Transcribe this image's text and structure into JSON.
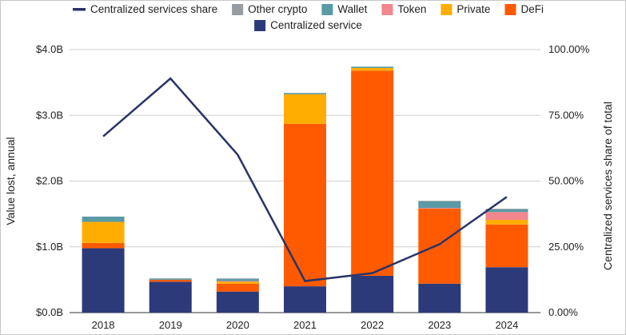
{
  "chart_data": {
    "type": "bar",
    "stacked": true,
    "categories": [
      "2018",
      "2019",
      "2020",
      "2021",
      "2022",
      "2023",
      "2024"
    ],
    "series": [
      {
        "name": "Centralized service",
        "color": "#2d3a7a",
        "values": [
          0.98,
          0.47,
          0.32,
          0.4,
          0.56,
          0.44,
          0.69
        ]
      },
      {
        "name": "DeFi",
        "color": "#ff5a00",
        "values": [
          0.08,
          0.03,
          0.12,
          2.47,
          3.12,
          1.14,
          0.65
        ]
      },
      {
        "name": "Private",
        "color": "#ffad00",
        "values": [
          0.32,
          0.0,
          0.03,
          0.45,
          0.04,
          0.0,
          0.07
        ]
      },
      {
        "name": "Token",
        "color": "#f2868f",
        "values": [
          0.0,
          0.0,
          0.01,
          0.0,
          0.0,
          0.01,
          0.12
        ]
      },
      {
        "name": "Wallet",
        "color": "#5a9aa5",
        "values": [
          0.08,
          0.02,
          0.03,
          0.02,
          0.02,
          0.1,
          0.04
        ]
      },
      {
        "name": "Other crypto",
        "color": "#969ca0",
        "values": [
          0.0,
          0.0,
          0.01,
          0.0,
          0.0,
          0.01,
          0.01
        ]
      }
    ],
    "line": {
      "name": "Centralized services share",
      "color": "#283469",
      "values": [
        0.67,
        0.89,
        0.6,
        0.12,
        0.15,
        0.26,
        0.44
      ]
    },
    "ylabel": "Value lost, annual",
    "y2label": "Centralized services share of total",
    "yticks": [
      "$0.0B",
      "$1.0B",
      "$2.0B",
      "$3.0B",
      "$4.0B"
    ],
    "y2ticks": [
      "0.00%",
      "25.00%",
      "50.00%",
      "75.00%",
      "100.00%"
    ],
    "ylim": [
      0,
      4
    ],
    "y2lim": [
      0,
      1
    ],
    "grid": true,
    "legend_position": "top"
  }
}
